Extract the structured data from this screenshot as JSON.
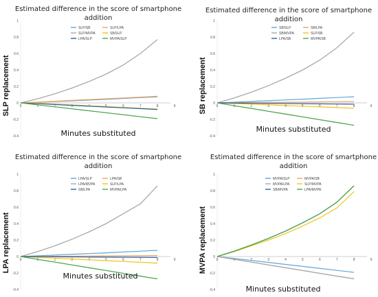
{
  "chart_data": [
    {
      "type": "line",
      "title": [
        "Estimated difference in the score of smartphone",
        "addition"
      ],
      "xlabel": "Minutes substituted",
      "ylabel": "SLP replacement",
      "xlim": [
        0,
        9
      ],
      "ylim": [
        -0.4,
        1
      ],
      "x_ticks": [
        0,
        1,
        2,
        3,
        4,
        5,
        6,
        7,
        8,
        9
      ],
      "y_ticks": [
        -0.4,
        -0.2,
        0,
        0.2,
        0.4,
        0.6,
        0.8,
        1
      ],
      "x": [
        0,
        1,
        2,
        3,
        4,
        5,
        6,
        7,
        8
      ],
      "series": [
        {
          "name": "SLP/SB",
          "color": "#5DA5DA",
          "values": [
            0,
            0.008,
            0.016,
            0.025,
            0.034,
            0.044,
            0.054,
            0.064,
            0.074
          ]
        },
        {
          "name": "SLP/LPA",
          "color": "#F0A35E",
          "values": [
            0,
            0.01,
            0.02,
            0.03,
            0.04,
            0.05,
            0.06,
            0.07,
            0.08
          ]
        },
        {
          "name": "SLP/MVPA",
          "color": "#A8A8A8",
          "values": [
            0,
            0.05,
            0.11,
            0.18,
            0.26,
            0.35,
            0.46,
            0.6,
            0.77
          ]
        },
        {
          "name": "SB/SLP",
          "color": "#F2C314",
          "values": [
            0,
            -0.005,
            -0.015,
            -0.025,
            -0.035,
            -0.045,
            -0.055,
            -0.065,
            -0.075
          ]
        },
        {
          "name": "LPA/SLP",
          "color": "#2E5FA8",
          "values": [
            0,
            -0.01,
            -0.02,
            -0.03,
            -0.04,
            -0.05,
            -0.06,
            -0.07,
            -0.08
          ]
        },
        {
          "name": "MVPA/SLP",
          "color": "#4CA64C",
          "values": [
            0,
            -0.024,
            -0.048,
            -0.072,
            -0.096,
            -0.12,
            -0.144,
            -0.168,
            -0.192
          ]
        }
      ]
    },
    {
      "type": "line",
      "title": [
        "Estimated difference in the score of smartphone",
        "addition"
      ],
      "xlabel": "Minutes substituted",
      "ylabel": "SB replacement",
      "xlim": [
        0,
        9
      ],
      "ylim": [
        -0.4,
        1
      ],
      "x_ticks": [
        0,
        1,
        2,
        3,
        4,
        5,
        6,
        7,
        8,
        9
      ],
      "y_ticks": [
        -0.4,
        -0.2,
        0,
        0.2,
        0.4,
        0.6,
        0.8,
        1
      ],
      "x": [
        0,
        1,
        2,
        3,
        4,
        5,
        6,
        7,
        8
      ],
      "series": [
        {
          "name": "SB/SLP",
          "color": "#5DA5DA",
          "values": [
            0,
            0.009,
            0.018,
            0.027,
            0.036,
            0.045,
            0.055,
            0.065,
            0.075
          ]
        },
        {
          "name": "SB/LPA",
          "color": "#F0A35E",
          "values": [
            0,
            0.002,
            0.004,
            0.006,
            0.008,
            0.01,
            0.012,
            0.014,
            0.016
          ]
        },
        {
          "name": "SB/MVPA",
          "color": "#A8A8A8",
          "values": [
            0,
            0.06,
            0.13,
            0.21,
            0.3,
            0.4,
            0.52,
            0.67,
            0.86
          ]
        },
        {
          "name": "SLP/SB",
          "color": "#F2C314",
          "values": [
            0,
            -0.008,
            -0.016,
            -0.024,
            -0.032,
            -0.04,
            -0.048,
            -0.056,
            -0.065
          ]
        },
        {
          "name": "LPA/SB",
          "color": "#2E5FA8",
          "values": [
            0,
            -0.002,
            -0.004,
            -0.006,
            -0.008,
            -0.01,
            -0.012,
            -0.014,
            -0.016
          ]
        },
        {
          "name": "MVPA/SB",
          "color": "#4CA64C",
          "values": [
            0,
            -0.034,
            -0.068,
            -0.102,
            -0.136,
            -0.17,
            -0.204,
            -0.238,
            -0.272
          ]
        }
      ]
    },
    {
      "type": "line",
      "title": [
        "Estimated difference in the score of smartphone",
        "addition"
      ],
      "xlabel": "Minutes substituted",
      "ylabel": "LPA replacement",
      "xlim": [
        0,
        9
      ],
      "ylim": [
        -0.4,
        1
      ],
      "x_ticks": [
        0,
        1,
        2,
        3,
        4,
        5,
        6,
        7,
        8,
        9
      ],
      "y_ticks": [
        -0.4,
        -0.2,
        0,
        0.2,
        0.4,
        0.6,
        0.8,
        1
      ],
      "x": [
        0,
        1,
        2,
        3,
        4,
        5,
        6,
        7,
        8
      ],
      "series": [
        {
          "name": "LPA/SLP",
          "color": "#5DA5DA",
          "values": [
            0,
            0.009,
            0.018,
            0.027,
            0.036,
            0.045,
            0.055,
            0.065,
            0.075
          ]
        },
        {
          "name": "LPA/SB",
          "color": "#F0A35E",
          "values": [
            0,
            0.001,
            0.003,
            0.004,
            0.006,
            0.007,
            0.009,
            0.01,
            0.012
          ]
        },
        {
          "name": "LPA/MVPA",
          "color": "#A8A8A8",
          "values": [
            0,
            0.06,
            0.13,
            0.21,
            0.3,
            0.4,
            0.52,
            0.64,
            0.86
          ]
        },
        {
          "name": "SLP/LPA",
          "color": "#F2C314",
          "values": [
            0,
            -0.01,
            -0.02,
            -0.03,
            -0.04,
            -0.05,
            -0.06,
            -0.07,
            -0.08
          ]
        },
        {
          "name": "SB/LPA",
          "color": "#2E5FA8",
          "values": [
            0,
            -0.001,
            -0.003,
            -0.004,
            -0.006,
            -0.007,
            -0.009,
            -0.01,
            -0.012
          ]
        },
        {
          "name": "MVPA/LPA",
          "color": "#4CA64C",
          "values": [
            0,
            -0.034,
            -0.068,
            -0.102,
            -0.136,
            -0.17,
            -0.204,
            -0.238,
            -0.272
          ]
        }
      ]
    },
    {
      "type": "line",
      "title": [
        "Estimated difference in the score of smartphone",
        "addition"
      ],
      "xlabel": "Minutes substituted",
      "ylabel": "MVPA replacement",
      "xlim": [
        0,
        9
      ],
      "ylim": [
        -0.4,
        1
      ],
      "x_ticks": [
        0,
        1,
        2,
        3,
        4,
        5,
        6,
        7,
        8,
        9
      ],
      "y_ticks": [
        -0.4,
        -0.2,
        0,
        0.2,
        0.4,
        0.6,
        0.8,
        1
      ],
      "x": [
        0,
        1,
        2,
        3,
        4,
        5,
        6,
        7,
        8
      ],
      "series": [
        {
          "name": "MVPA/SLP",
          "color": "#5DA5DA",
          "values": [
            0,
            -0.024,
            -0.048,
            -0.072,
            -0.096,
            -0.12,
            -0.144,
            -0.168,
            -0.192
          ]
        },
        {
          "name": "MVPA/SB",
          "color": "#F0A35E",
          "values": [
            0,
            -0.034,
            -0.068,
            -0.102,
            -0.136,
            -0.17,
            -0.204,
            -0.238,
            -0.272
          ]
        },
        {
          "name": "MVPA/LPA",
          "color": "#A8A8A8",
          "values": [
            0,
            -0.034,
            -0.068,
            -0.102,
            -0.136,
            -0.17,
            -0.204,
            -0.238,
            -0.27
          ]
        },
        {
          "name": "SLP/MVPA",
          "color": "#F2C314",
          "values": [
            0,
            0.06,
            0.13,
            0.2,
            0.28,
            0.37,
            0.47,
            0.59,
            0.79
          ]
        },
        {
          "name": "SB/MVPA",
          "color": "#2E5FA8",
          "values": [
            0,
            0.065,
            0.14,
            0.22,
            0.31,
            0.41,
            0.52,
            0.66,
            0.86
          ]
        },
        {
          "name": "LPA/MVPA",
          "color": "#4CA64C",
          "values": [
            0,
            0.066,
            0.14,
            0.22,
            0.31,
            0.41,
            0.52,
            0.66,
            0.86
          ]
        }
      ]
    }
  ]
}
